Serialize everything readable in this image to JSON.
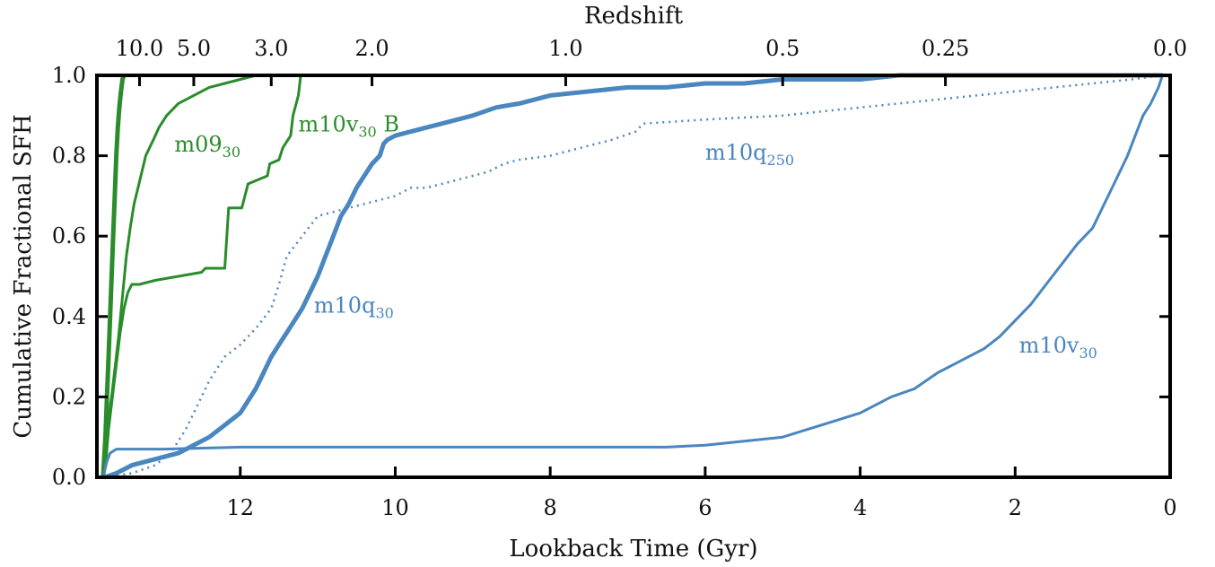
{
  "chart_data": {
    "type": "line",
    "title": "",
    "xlabel": "Lookback Time (Gyr)",
    "ylabel": "Cumulative Fractional SFH",
    "top_axis_label": "Redshift",
    "xlim": [
      13.85,
      0
    ],
    "ylim": [
      0,
      1
    ],
    "x_ticks": [
      12,
      10,
      8,
      6,
      4,
      2,
      0
    ],
    "y_ticks": [
      "0.0",
      "0.2",
      "0.4",
      "0.6",
      "0.8",
      "1.0"
    ],
    "redshift_ticks": [
      {
        "label": "10.0",
        "t": 13.3
      },
      {
        "label": "5.0",
        "t": 12.6
      },
      {
        "label": "3.0",
        "t": 11.6
      },
      {
        "label": "2.0",
        "t": 10.3
      },
      {
        "label": "1.0",
        "t": 7.8
      },
      {
        "label": "0.5",
        "t": 5.0
      },
      {
        "label": "0.25",
        "t": 2.9
      },
      {
        "label": "0.0",
        "t": 0.0
      }
    ],
    "grid": false,
    "legend": "none",
    "series": [
      {
        "name": "m09_30",
        "color": "#2a8c2a",
        "width": 3,
        "style": "solid",
        "x": [
          13.77,
          13.74,
          13.72,
          13.7,
          13.66,
          13.63,
          13.6,
          13.57,
          13.52,
          13.47,
          13.42,
          13.37,
          13.32,
          13.27,
          13.22,
          13.17,
          13.12,
          13.05,
          12.95,
          12.8,
          12.6,
          12.4,
          12.2,
          12.0,
          11.8
        ],
        "y": [
          0.0,
          0.05,
          0.1,
          0.15,
          0.2,
          0.25,
          0.3,
          0.35,
          0.45,
          0.55,
          0.62,
          0.68,
          0.72,
          0.76,
          0.8,
          0.82,
          0.84,
          0.87,
          0.9,
          0.93,
          0.95,
          0.97,
          0.98,
          0.99,
          1.0
        ]
      },
      {
        "name": "m10v_30 B",
        "color": "#2a8c2a",
        "width": 3,
        "style": "solid",
        "x": [
          13.77,
          13.73,
          13.7,
          13.65,
          13.6,
          13.55,
          13.5,
          13.45,
          13.4,
          13.3,
          13.1,
          12.8,
          12.5,
          12.45,
          12.2,
          12.15,
          11.98,
          11.9,
          11.65,
          11.62,
          11.5,
          11.45,
          11.35,
          11.32,
          11.25,
          11.22
        ],
        "y": [
          0.0,
          0.05,
          0.12,
          0.2,
          0.28,
          0.36,
          0.42,
          0.46,
          0.48,
          0.48,
          0.49,
          0.5,
          0.51,
          0.52,
          0.52,
          0.67,
          0.67,
          0.73,
          0.75,
          0.78,
          0.79,
          0.82,
          0.85,
          0.9,
          0.95,
          1.0
        ]
      },
      {
        "name": "green-thick",
        "color": "#2a8c2a",
        "width": 5,
        "style": "solid",
        "x": [
          13.77,
          13.74,
          13.72,
          13.7,
          13.68,
          13.66,
          13.64,
          13.62,
          13.6,
          13.58,
          13.56,
          13.54,
          13.52,
          13.5
        ],
        "y": [
          0.0,
          0.1,
          0.2,
          0.3,
          0.4,
          0.5,
          0.6,
          0.7,
          0.8,
          0.87,
          0.92,
          0.96,
          0.99,
          1.0
        ]
      },
      {
        "name": "m10q_30",
        "color": "#4a86bf",
        "width": 5,
        "style": "solid",
        "x": [
          13.75,
          13.6,
          13.4,
          13.2,
          13.0,
          12.8,
          12.6,
          12.4,
          12.2,
          12.0,
          11.8,
          11.7,
          11.6,
          11.5,
          11.4,
          11.3,
          11.2,
          11.1,
          11.0,
          10.9,
          10.8,
          10.7,
          10.6,
          10.5,
          10.4,
          10.3,
          10.2,
          10.15,
          10.1,
          10.0,
          9.8,
          9.6,
          9.4,
          9.2,
          9.0,
          8.7,
          8.4,
          8.0,
          7.5,
          7.0,
          6.5,
          6.0,
          5.5,
          5.0,
          4.5,
          4.0,
          3.5,
          3.0,
          2.5,
          2.0,
          1.0,
          0.5,
          0.1
        ],
        "y": [
          0.0,
          0.01,
          0.03,
          0.04,
          0.05,
          0.06,
          0.08,
          0.1,
          0.13,
          0.16,
          0.22,
          0.26,
          0.3,
          0.33,
          0.36,
          0.39,
          0.42,
          0.46,
          0.5,
          0.55,
          0.6,
          0.65,
          0.68,
          0.72,
          0.75,
          0.78,
          0.8,
          0.83,
          0.84,
          0.85,
          0.86,
          0.87,
          0.88,
          0.89,
          0.9,
          0.92,
          0.93,
          0.95,
          0.96,
          0.97,
          0.97,
          0.98,
          0.98,
          0.99,
          0.99,
          0.99,
          1.0,
          1.0,
          1.0,
          1.0,
          1.0,
          1.0,
          1.0
        ]
      },
      {
        "name": "m10q_250",
        "color": "#4a86bf",
        "width": 2.5,
        "style": "dotted",
        "x": [
          13.75,
          13.4,
          13.1,
          12.9,
          12.8,
          12.7,
          12.6,
          12.5,
          12.4,
          12.3,
          12.2,
          12.0,
          11.8,
          11.6,
          11.5,
          11.4,
          11.2,
          11.0,
          10.8,
          10.6,
          10.4,
          10.2,
          10.0,
          9.8,
          9.6,
          9.4,
          9.2,
          9.0,
          8.8,
          8.6,
          8.4,
          8.0,
          7.6,
          7.2,
          6.9,
          6.8,
          6.0,
          5.0,
          4.5,
          4.0,
          3.0,
          2.0,
          1.0,
          0.5,
          0.1
        ],
        "y": [
          0.0,
          0.01,
          0.03,
          0.06,
          0.09,
          0.12,
          0.16,
          0.2,
          0.24,
          0.27,
          0.3,
          0.33,
          0.37,
          0.42,
          0.48,
          0.55,
          0.6,
          0.65,
          0.66,
          0.67,
          0.68,
          0.69,
          0.7,
          0.72,
          0.72,
          0.73,
          0.74,
          0.75,
          0.76,
          0.78,
          0.79,
          0.8,
          0.82,
          0.84,
          0.86,
          0.88,
          0.89,
          0.9,
          0.91,
          0.92,
          0.94,
          0.96,
          0.98,
          0.99,
          1.0
        ]
      },
      {
        "name": "m10v_30",
        "color": "#4a86bf",
        "width": 3,
        "style": "solid",
        "x": [
          13.77,
          13.72,
          13.68,
          13.6,
          13.4,
          13.0,
          12.0,
          10.0,
          8.0,
          6.5,
          6.0,
          5.5,
          5.0,
          4.5,
          4.0,
          3.6,
          3.3,
          3.0,
          2.8,
          2.6,
          2.4,
          2.2,
          2.0,
          1.8,
          1.6,
          1.4,
          1.2,
          1.0,
          0.85,
          0.7,
          0.55,
          0.45,
          0.35,
          0.25,
          0.15,
          0.1
        ],
        "y": [
          0.0,
          0.04,
          0.06,
          0.07,
          0.07,
          0.07,
          0.075,
          0.075,
          0.075,
          0.075,
          0.08,
          0.09,
          0.1,
          0.13,
          0.16,
          0.2,
          0.22,
          0.26,
          0.28,
          0.3,
          0.32,
          0.35,
          0.39,
          0.43,
          0.48,
          0.53,
          0.58,
          0.62,
          0.68,
          0.74,
          0.8,
          0.85,
          0.9,
          0.93,
          0.97,
          1.0
        ]
      }
    ],
    "annotations": [
      {
        "text": "m09",
        "sub": "30",
        "suffix": "",
        "x": 12.85,
        "y": 0.81,
        "color": "#2a8c2a"
      },
      {
        "text": "m10v",
        "sub": "30",
        "suffix": " B",
        "x": 11.25,
        "y": 0.86,
        "color": "#2a8c2a"
      },
      {
        "text": "m10q",
        "sub": "250",
        "suffix": "",
        "x": 6.0,
        "y": 0.79,
        "color": "#4a86bf"
      },
      {
        "text": "m10q",
        "sub": "30",
        "suffix": "",
        "x": 11.05,
        "y": 0.41,
        "color": "#4a86bf"
      },
      {
        "text": "m10v",
        "sub": "30",
        "suffix": "",
        "x": 1.95,
        "y": 0.31,
        "color": "#4a86bf"
      }
    ]
  }
}
